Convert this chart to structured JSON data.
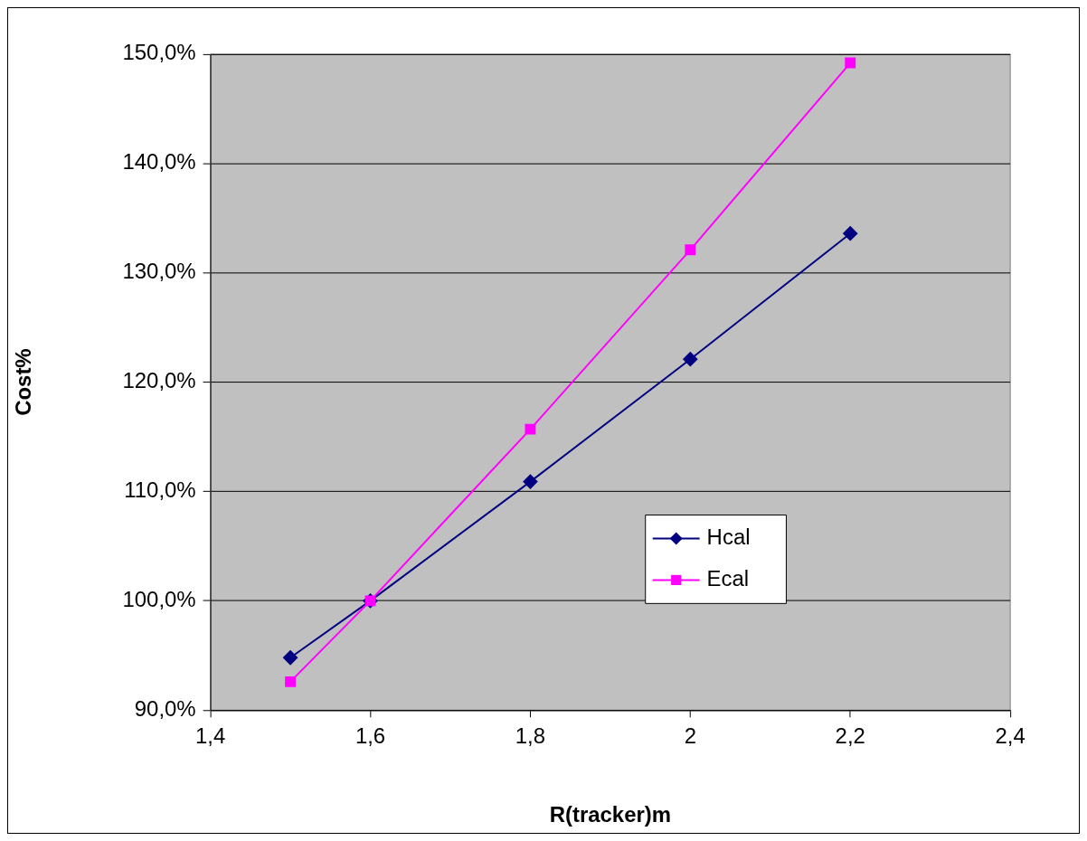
{
  "chart_data": {
    "type": "line",
    "xlabel": "R(tracker)m",
    "ylabel": "Cost%",
    "xlim": [
      1.4,
      2.4
    ],
    "xticks": [
      {
        "value": 1.4,
        "label": "1,4"
      },
      {
        "value": 1.6,
        "label": "1,6"
      },
      {
        "value": 1.8,
        "label": "1,8"
      },
      {
        "value": 2,
        "label": "2"
      },
      {
        "value": 2.2,
        "label": "2,2"
      },
      {
        "value": 2.4,
        "label": "2,4"
      }
    ],
    "ylim": [
      90,
      150
    ],
    "yticks": [
      {
        "value": 90,
        "label": "90,0%"
      },
      {
        "value": 100,
        "label": "100,0%"
      },
      {
        "value": 110,
        "label": "110,0%"
      },
      {
        "value": 120,
        "label": "120,0%"
      },
      {
        "value": 130,
        "label": "130,0%"
      },
      {
        "value": 140,
        "label": "140,0%"
      },
      {
        "value": 150,
        "label": "150,0%"
      }
    ],
    "x": [
      1.5,
      1.6,
      1.8,
      2,
      2.2
    ],
    "series": [
      {
        "name": "Hcal",
        "color": "#000080",
        "marker": "diamond",
        "values": [
          94.8,
          100,
          110.9,
          122.1,
          133.6
        ]
      },
      {
        "name": "Ecal",
        "color": "#ff00ff",
        "marker": "square",
        "values": [
          92.6,
          100,
          115.7,
          132.1,
          149.2
        ]
      }
    ],
    "grid": "y",
    "legend": "bottom",
    "line_style": "solid"
  }
}
